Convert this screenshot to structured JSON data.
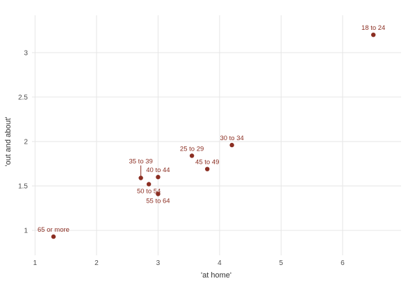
{
  "chart_data": {
    "type": "scatter",
    "title": "",
    "xlabel": "'at home'",
    "ylabel": "'out and about'",
    "xlim": [
      0.95,
      6.95
    ],
    "ylim": [
      0.72,
      3.42
    ],
    "x_ticks": [
      1,
      2,
      3,
      4,
      5,
      6
    ],
    "y_ticks": [
      1,
      1.5,
      2,
      2.5,
      3
    ],
    "y_tick_labels": [
      "1",
      "1.5",
      "2",
      "2.5",
      "3"
    ],
    "grid": true,
    "point_color": "#8b2e22",
    "points": [
      {
        "label": "18 to 24",
        "x": 6.5,
        "y": 3.2
      },
      {
        "label": "25 to 29",
        "x": 3.55,
        "y": 1.84
      },
      {
        "label": "30 to 34",
        "x": 4.2,
        "y": 1.96
      },
      {
        "label": "35 to 39",
        "x": 2.72,
        "y": 1.59
      },
      {
        "label": "40 to 44",
        "x": 3.0,
        "y": 1.6
      },
      {
        "label": "45 to 49",
        "x": 3.8,
        "y": 1.69
      },
      {
        "label": "50 to 54",
        "x": 2.85,
        "y": 1.52
      },
      {
        "label": "55 to 64",
        "x": 3.0,
        "y": 1.41
      },
      {
        "label": "65 or more",
        "x": 1.3,
        "y": 0.93
      }
    ]
  }
}
